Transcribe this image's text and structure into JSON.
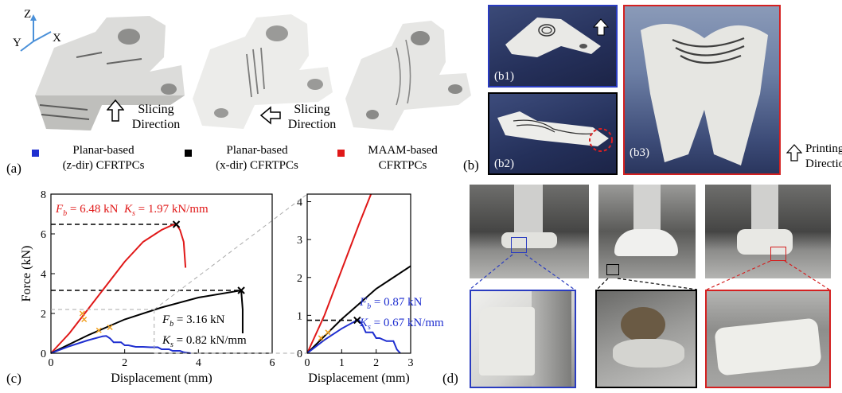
{
  "panel_a": {
    "label": "(a)",
    "axes": {
      "z": "Z",
      "y": "Y",
      "x": "X"
    },
    "slicing1": [
      "Slicing",
      "Direction"
    ],
    "slicing2": [
      "Slicing",
      "Direction"
    ],
    "legend": [
      {
        "line1": "Planar-based",
        "line2": "(z-dir) CFRTPCs",
        "color": "#1f2fd0"
      },
      {
        "line1": "Planar-based",
        "line2": "(x-dir) CFRTPCs",
        "color": "#000000"
      },
      {
        "line1": "MAAM-based",
        "line2": "CFRTPCs",
        "color": "#e01818"
      }
    ]
  },
  "panel_b": {
    "label": "(b)",
    "b1": "(b1)",
    "b2": "(b2)",
    "b3": "(b3)",
    "printing": [
      "Printing",
      "Direction"
    ],
    "frame_colors": {
      "b1": "#2a3cc0",
      "b2": "#000000",
      "b3": "#d42020"
    }
  },
  "panel_c": {
    "label": "(c)",
    "red_annot": {
      "fb": "F",
      "fb_sub": "b",
      "fb_val": " = 6.48 kN",
      "ks": "K",
      "ks_sub": "s",
      "ks_val": " = 1.97 kN/mm"
    },
    "black_annot": {
      "fb": "F",
      "fb_sub": "b",
      "fb_val": " = 3.16 kN",
      "ks": "K",
      "ks_sub": "s",
      "ks_val": " = 0.82 kN/mm"
    },
    "blue_annot": {
      "fb": "F",
      "fb_sub": "b",
      "fb_val": " = 0.87 kN",
      "ks": "K",
      "ks_sub": "s",
      "ks_val": " = 0.67 kN/mm"
    }
  },
  "panel_d": {
    "label": "(d)",
    "frame_colors": [
      "#2a3cc0",
      "#000000",
      "#d42020"
    ]
  },
  "chart_data": [
    {
      "type": "line",
      "title": "",
      "xlabel": "Displacement (mm)",
      "ylabel": "Force (kN)",
      "xlim": [
        0,
        6
      ],
      "ylim": [
        0,
        8
      ],
      "xticks": [
        0,
        2,
        4,
        6
      ],
      "yticks": [
        0,
        2,
        4,
        6,
        8
      ],
      "series": [
        {
          "color": "#e01818",
          "x": [
            0,
            0.5,
            1.0,
            1.5,
            2.0,
            2.5,
            3.0,
            3.3,
            3.4,
            3.5,
            3.6,
            3.65
          ],
          "y": [
            0,
            1.0,
            2.2,
            3.4,
            4.6,
            5.6,
            6.2,
            6.45,
            6.48,
            6.2,
            5.6,
            4.3
          ]
        },
        {
          "color": "#000000",
          "x": [
            0,
            1,
            2,
            3,
            4,
            5.16,
            5.2,
            5.2
          ],
          "y": [
            0,
            0.9,
            1.7,
            2.3,
            2.8,
            3.16,
            2.2,
            1.0
          ]
        },
        {
          "color": "#1f2fd0",
          "x": [
            0,
            0.5,
            1.0,
            1.4,
            1.5,
            1.6,
            1.7,
            1.9,
            2.0,
            2.1,
            2.3,
            2.5,
            2.7,
            2.9,
            3.0,
            3.2,
            3.3,
            3.5,
            3.6,
            3.7,
            3.8
          ],
          "y": [
            0,
            0.35,
            0.65,
            0.85,
            0.87,
            0.75,
            0.55,
            0.55,
            0.4,
            0.4,
            0.32,
            0.32,
            0.3,
            0.3,
            0.2,
            0.2,
            0.12,
            0.12,
            0.05,
            0.02,
            0.0
          ]
        }
      ],
      "failure_points": [
        [
          3.4,
          6.48
        ],
        [
          5.16,
          3.16
        ]
      ],
      "yield_marks": [
        [
          0.85,
          2.0
        ],
        [
          0.9,
          1.7
        ],
        [
          1.3,
          1.15
        ],
        [
          1.6,
          1.3
        ]
      ],
      "dashed_hlines": [
        6.48,
        3.16
      ]
    },
    {
      "type": "line",
      "title": "",
      "xlabel": "Displacement (mm)",
      "ylabel": "",
      "xlim": [
        0,
        3
      ],
      "ylim": [
        0,
        4.2
      ],
      "xticks": [
        0,
        1,
        2,
        3
      ],
      "yticks": [
        0,
        1,
        2,
        3,
        4
      ],
      "series": [
        {
          "color": "#e01818",
          "x": [
            0,
            0.5,
            1.0,
            1.5,
            1.85
          ],
          "y": [
            0,
            1.0,
            2.2,
            3.4,
            4.2
          ]
        },
        {
          "color": "#000000",
          "x": [
            0,
            0.5,
            1.0,
            1.5,
            2.0,
            2.5,
            3.0
          ],
          "y": [
            0,
            0.45,
            0.9,
            1.3,
            1.7,
            2.0,
            2.3
          ]
        },
        {
          "color": "#1f2fd0",
          "x": [
            0,
            0.5,
            1.0,
            1.4,
            1.5,
            1.6,
            1.7,
            1.9,
            2.0,
            2.1,
            2.3,
            2.5,
            2.6,
            2.7
          ],
          "y": [
            0,
            0.35,
            0.65,
            0.85,
            0.87,
            0.75,
            0.55,
            0.55,
            0.4,
            0.4,
            0.32,
            0.32,
            0.1,
            0.0
          ]
        }
      ],
      "failure_points": [
        [
          1.45,
          0.87
        ]
      ],
      "yield_marks": [
        [
          0.4,
          0.4
        ],
        [
          0.6,
          0.55
        ]
      ],
      "dashed_hlines": [
        0.87
      ]
    }
  ]
}
